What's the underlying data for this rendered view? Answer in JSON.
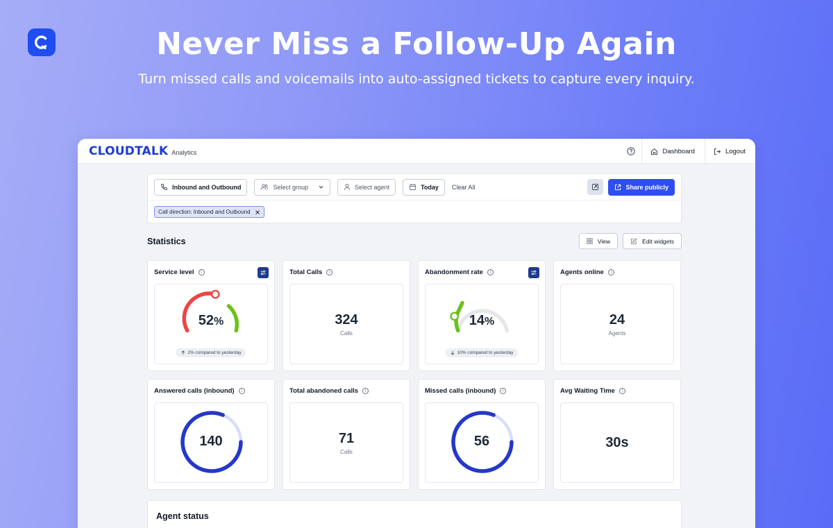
{
  "hero": {
    "title": "Never Miss a Follow-Up Again",
    "subtitle": "Turn missed calls and voicemails into auto-assigned tickets to capture every inquiry."
  },
  "topbar": {
    "brand": "CLOUDTALK",
    "brand_sub": "Analytics",
    "dashboard_label": "Dashboard",
    "logout_label": "Logout"
  },
  "filters": {
    "direction": "Inbound and Outbound",
    "group_placeholder": "Select group",
    "agent_placeholder": "Select agent",
    "date": "Today",
    "clear_all": "Clear All",
    "share_label": "Share publicly",
    "active_chip": "Call direction: Inbound and Outbound"
  },
  "statistics": {
    "title": "Statistics",
    "view_label": "View",
    "edit_label": "Edit widgets"
  },
  "widgets": {
    "service_level": {
      "title": "Service level",
      "value": "52",
      "unit": "%",
      "compare": "2% compared to yesterday",
      "compare_dir": "up"
    },
    "total_calls": {
      "title": "Total Calls",
      "value": "324",
      "unit_label": "Calls"
    },
    "abandonment_rate": {
      "title": "Abandonment rate",
      "value": "14",
      "unit": "%",
      "compare": "10% compared to yesterday",
      "compare_dir": "down"
    },
    "agents_online": {
      "title": "Agents online",
      "value": "24",
      "unit_label": "Agents"
    },
    "answered_calls": {
      "title": "Answered calls (inbound)",
      "value": "140"
    },
    "total_abandoned": {
      "title": "Total abandoned calls",
      "value": "71",
      "unit_label": "Calls"
    },
    "missed_calls": {
      "title": "Missed calls (inbound)",
      "value": "56"
    },
    "avg_waiting": {
      "title": "Avg Waiting Time",
      "value": "30s"
    }
  },
  "agent_status": {
    "title": "Agent status"
  },
  "colors": {
    "accent": "#2f4ef1",
    "gauge_red": "#ef4444",
    "gauge_green": "#6bc21a",
    "ring_blue": "#2438c9",
    "ring_light": "#d9ddfb",
    "track": "#e5e7eb"
  }
}
